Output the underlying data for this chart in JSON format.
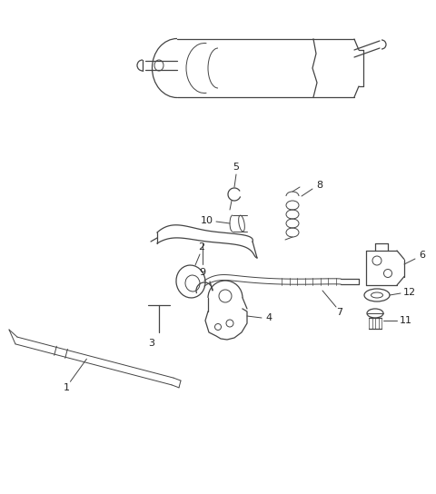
{
  "background_color": "#ffffff",
  "line_color": "#444444",
  "label_color": "#222222",
  "fig_width": 4.8,
  "fig_height": 5.44,
  "dpi": 100
}
